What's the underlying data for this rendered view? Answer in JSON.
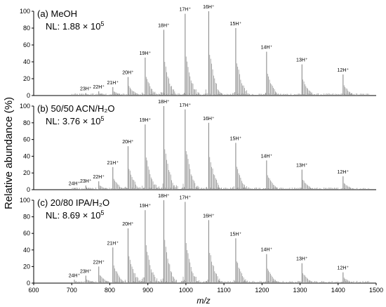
{
  "chart_data": {
    "type": "line",
    "ylabel": "Relative abundance (%)",
    "xlabel": "m/z",
    "x_range": [
      600,
      1500
    ],
    "x_ticks": [
      "600",
      "700",
      "800",
      "900",
      "1000",
      "1100",
      "1200",
      "1300",
      "1400",
      "1500"
    ],
    "y_ticks": [
      "0",
      "20",
      "40",
      "60",
      "80",
      "100"
    ],
    "line_color": "#8c8c8c",
    "panels": [
      {
        "title": "(a) MeOH",
        "nl_prefix": "NL: 1.88 × 10",
        "nl_exp": "5",
        "ylim": [
          0,
          100
        ],
        "peaks": [
          {
            "label": "23H⁺",
            "mz": 737,
            "y": 3
          },
          {
            "label": "22H⁺",
            "mz": 771,
            "y": 5
          },
          {
            "label": "21H⁺",
            "mz": 808,
            "y": 10
          },
          {
            "label": "20H⁺",
            "mz": 848,
            "y": 22
          },
          {
            "label": "19H⁺",
            "mz": 893,
            "y": 45
          },
          {
            "label": "18H⁺",
            "mz": 942,
            "y": 78
          },
          {
            "label": "17H⁺",
            "mz": 998,
            "y": 97
          },
          {
            "label": "16H⁺",
            "mz": 1060,
            "y": 100
          },
          {
            "label": "15H⁺",
            "mz": 1131,
            "y": 80
          },
          {
            "label": "14H⁺",
            "mz": 1212,
            "y": 52
          },
          {
            "label": "13H⁺",
            "mz": 1305,
            "y": 37
          },
          {
            "label": "12H⁺",
            "mz": 1413,
            "y": 25
          }
        ]
      },
      {
        "title": "(b) 50/50 ACN/H₂O",
        "nl_prefix": "NL: 3.76 × 10",
        "nl_exp": "5",
        "ylim": [
          0,
          100
        ],
        "peaks": [
          {
            "label": "24H⁺",
            "mz": 707,
            "y": 2
          },
          {
            "label": "23H⁺",
            "mz": 737,
            "y": 5
          },
          {
            "label": "22H⁺",
            "mz": 771,
            "y": 10
          },
          {
            "label": "21H⁺",
            "mz": 808,
            "y": 27
          },
          {
            "label": "20H⁺",
            "mz": 848,
            "y": 52
          },
          {
            "label": "19H⁺",
            "mz": 893,
            "y": 78
          },
          {
            "label": "18H⁺",
            "mz": 942,
            "y": 100
          },
          {
            "label": "17H⁺",
            "mz": 998,
            "y": 96
          },
          {
            "label": "16H⁺",
            "mz": 1060,
            "y": 80
          },
          {
            "label": "15H⁺",
            "mz": 1131,
            "y": 56
          },
          {
            "label": "14H⁺",
            "mz": 1212,
            "y": 35
          },
          {
            "label": "13H⁺",
            "mz": 1305,
            "y": 24
          },
          {
            "label": "12H⁺",
            "mz": 1413,
            "y": 16
          }
        ]
      },
      {
        "title": "(c) 20/80 IPA/H₂O",
        "nl_prefix": "NL: 8.69 × 10",
        "nl_exp": "5",
        "ylim": [
          0,
          100
        ],
        "peaks": [
          {
            "label": "24H⁺",
            "mz": 707,
            "y": 4
          },
          {
            "label": "23H⁺",
            "mz": 737,
            "y": 9
          },
          {
            "label": "22H⁺",
            "mz": 771,
            "y": 20
          },
          {
            "label": "21H⁺",
            "mz": 808,
            "y": 43
          },
          {
            "label": "20H⁺",
            "mz": 848,
            "y": 66
          },
          {
            "label": "19H⁺",
            "mz": 893,
            "y": 88
          },
          {
            "label": "18H⁺",
            "mz": 942,
            "y": 100
          },
          {
            "label": "17H⁺",
            "mz": 998,
            "y": 98
          },
          {
            "label": "16H⁺",
            "mz": 1060,
            "y": 76
          },
          {
            "label": "15H⁺",
            "mz": 1131,
            "y": 54
          },
          {
            "label": "14H⁺",
            "mz": 1212,
            "y": 35
          },
          {
            "label": "13H⁺",
            "mz": 1305,
            "y": 24
          },
          {
            "label": "12H⁺",
            "mz": 1413,
            "y": 13
          }
        ]
      }
    ]
  }
}
